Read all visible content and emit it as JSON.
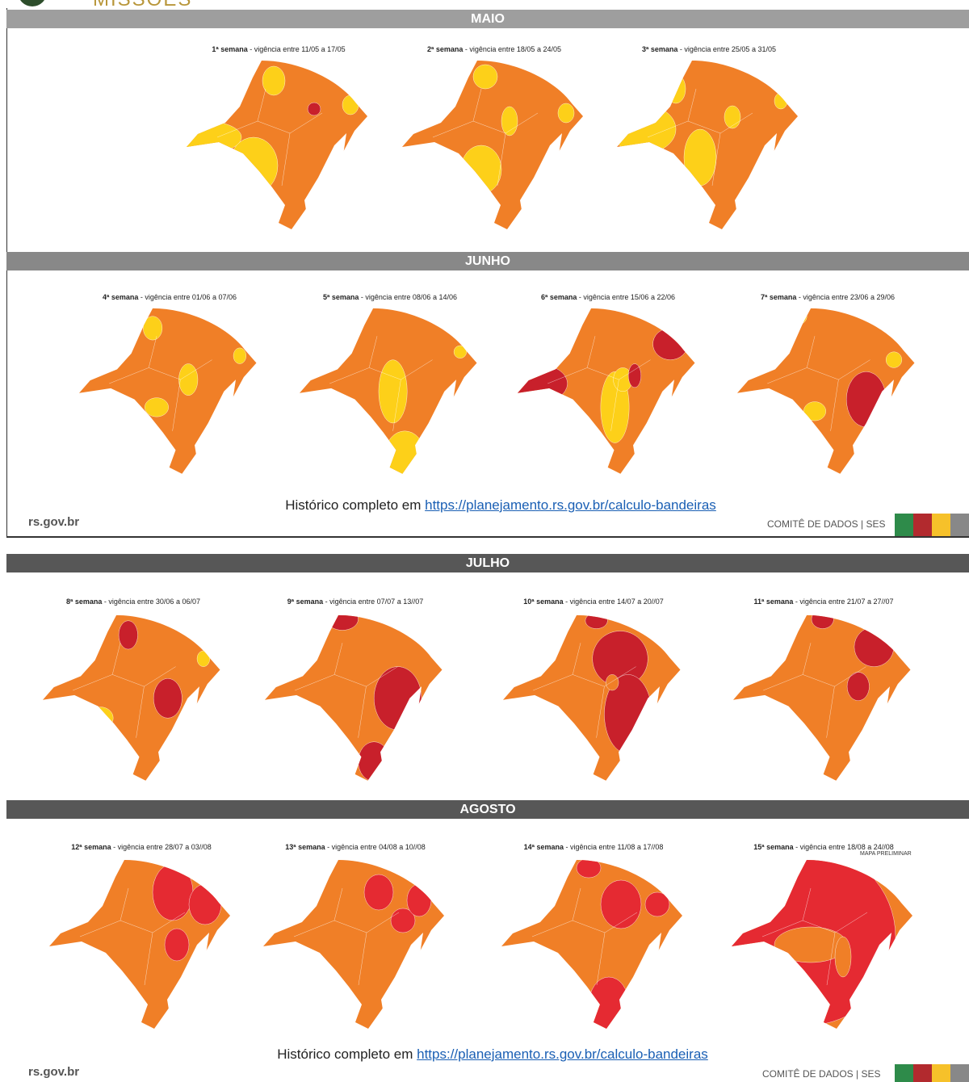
{
  "header": {
    "title": "MISSÕES"
  },
  "pages": [
    {
      "sections": [
        {
          "title": "MAIO",
          "weeks": [
            {
              "week": "1ª semana",
              "period": " - vigência entre 11/05 a 17/05"
            },
            {
              "week": "2ª semana",
              "period": " - vigência entre 18/05 a 24/05"
            },
            {
              "week": "3ª semana",
              "period": " - vigência entre 25/05 a 31/05"
            }
          ]
        },
        {
          "title": "JUNHO",
          "weeks": [
            {
              "week": "4ª semana",
              "period": " - vigência entre 01/06 a 07/06"
            },
            {
              "week": "5ª semana",
              "period": " - vigência entre 08/06 a 14/06"
            },
            {
              "week": "6ª semana",
              "period": " - vigência entre 15/06 a 22/06"
            },
            {
              "week": "7ª semana",
              "period": " - vigência entre 23/06 a 29/06"
            }
          ]
        }
      ],
      "footer": {
        "history": "Histórico completo em",
        "link": "https://planejamento.rs.gov.br/calculo-bandeiras",
        "site": "rs.gov.br",
        "committee": "COMITÊ DE DADOS | SES"
      }
    },
    {
      "sections": [
        {
          "title": "JULHO",
          "weeks": [
            {
              "week": "8ª semana",
              "period": " - vigência entre 30/06 a 06/07"
            },
            {
              "week": "9ª semana",
              "period": " - vigência entre 07/07 a 13//07"
            },
            {
              "week": "10ª semana",
              "period": " - vigência entre 14/07 a 20//07"
            },
            {
              "week": "11ª semana",
              "period": " - vigência entre 21/07 a 27//07"
            }
          ]
        },
        {
          "title": "AGOSTO",
          "weeks": [
            {
              "week": "12ª semana",
              "period": " - vigência entre 28/07 a 03//08"
            },
            {
              "week": "13ª semana",
              "period": " - vigência entre 04/08 a 10//08"
            },
            {
              "week": "14ª semana",
              "period": " - vigência entre 11/08 a 17//08"
            },
            {
              "week": "15ª semana",
              "period": " - vigência entre 18/08 a 24//08",
              "note": "MAPA PRELIMINAR"
            }
          ]
        }
      ],
      "footer": {
        "history": "Histórico completo em",
        "link": "https://planejamento.rs.gov.br/calculo-bandeiras",
        "site": "rs.gov.br",
        "committee": "COMITÊ DE DADOS | SES"
      }
    }
  ]
}
